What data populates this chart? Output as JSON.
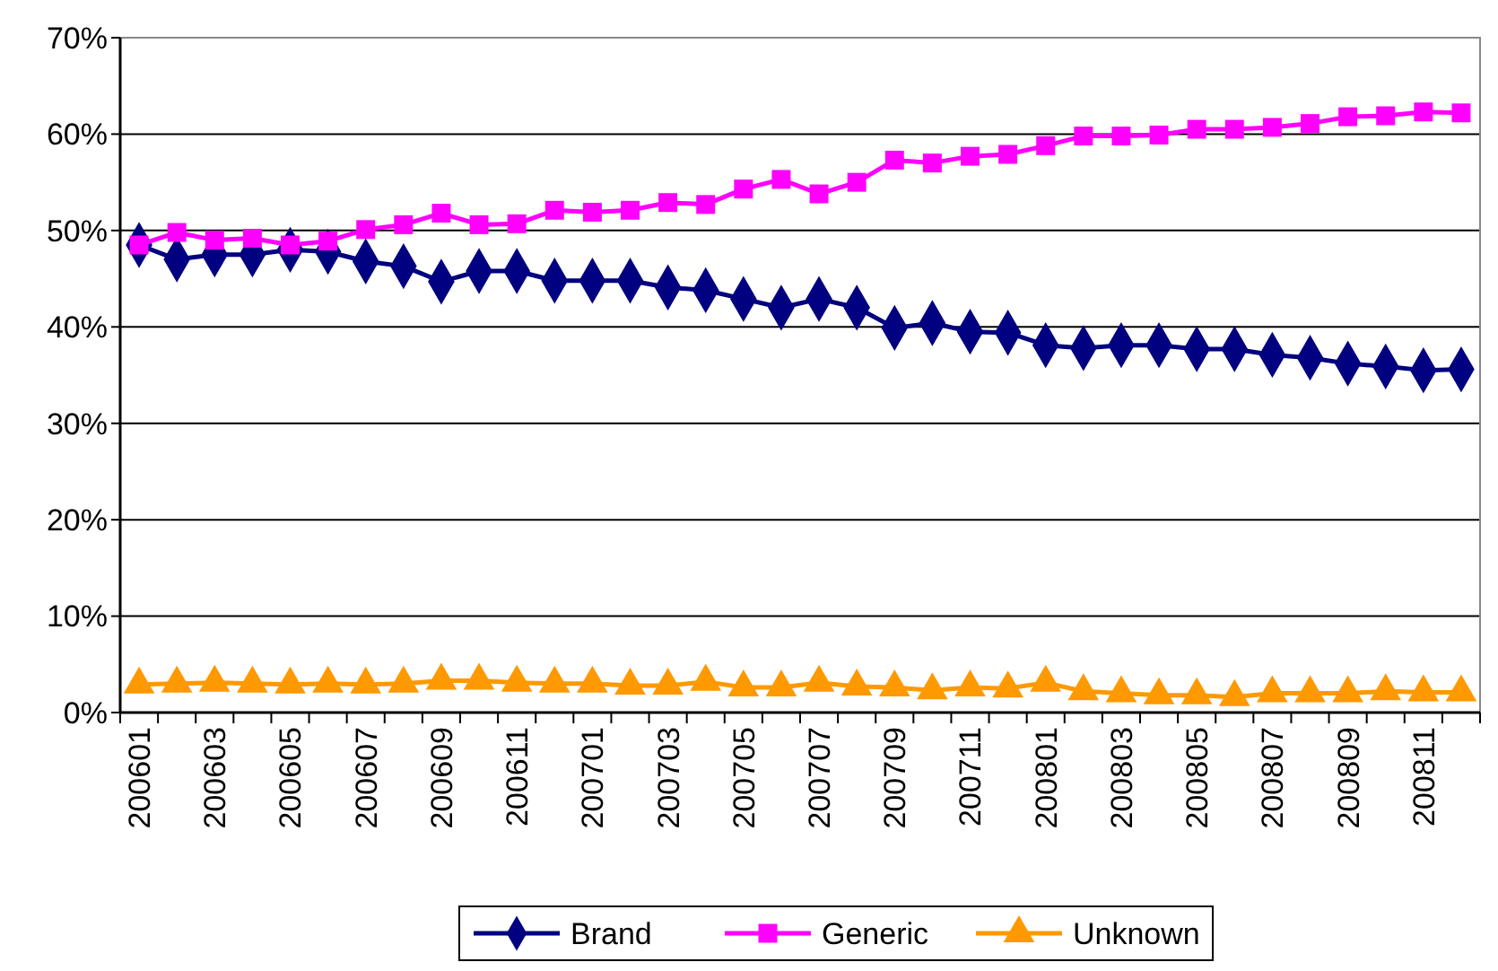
{
  "chart_data": {
    "type": "line",
    "categories": [
      "200601",
      null,
      "200603",
      null,
      "200605",
      null,
      "200607",
      null,
      "200609",
      null,
      "200611",
      null,
      "200701",
      null,
      "200703",
      null,
      "200705",
      null,
      "200707",
      null,
      "200709",
      null,
      "200711",
      null,
      "200801",
      null,
      "200803",
      null,
      "200805",
      null,
      "200807",
      null,
      "200809",
      null,
      "200811",
      null
    ],
    "series": [
      {
        "name": "Brand",
        "color": "#000080",
        "marker": "diamond",
        "values": [
          48.5,
          47,
          47.5,
          47.5,
          48,
          47.8,
          46.8,
          46.3,
          44.7,
          45.8,
          45.8,
          44.8,
          44.8,
          44.8,
          44.1,
          43.8,
          42.9,
          42,
          42.9,
          42,
          39.9,
          40.4,
          39.5,
          39.4,
          38.1,
          37.8,
          38.1,
          38.1,
          37.7,
          37.7,
          37.1,
          36.8,
          36.2,
          35.9,
          35.5,
          35.6
        ]
      },
      {
        "name": "Generic",
        "color": "#ff00ff",
        "marker": "square",
        "values": [
          48.5,
          49.8,
          49,
          49.2,
          48.5,
          48.9,
          50.1,
          50.6,
          51.8,
          50.6,
          50.7,
          52.1,
          51.9,
          52.1,
          52.9,
          52.7,
          54.3,
          55.3,
          53.8,
          55,
          57.3,
          57,
          57.7,
          57.9,
          58.8,
          59.8,
          59.8,
          59.9,
          60.5,
          60.5,
          60.7,
          61.1,
          61.8,
          61.9,
          62.3,
          62.2
        ]
      },
      {
        "name": "Unknown",
        "color": "#ff9900",
        "marker": "triangle",
        "values": [
          2.9,
          3,
          3.1,
          3,
          2.9,
          3,
          2.9,
          3,
          3.3,
          3.3,
          3.1,
          3,
          3,
          2.8,
          2.8,
          3.2,
          2.6,
          2.6,
          3.1,
          2.7,
          2.6,
          2.3,
          2.6,
          2.5,
          3.1,
          2.2,
          2,
          1.8,
          1.8,
          1.6,
          2,
          2,
          2,
          2.2,
          2.1,
          2.1
        ]
      }
    ],
    "ylim": [
      0,
      70
    ],
    "yticks": [
      {
        "value": 0,
        "label": "0%"
      },
      {
        "value": 10,
        "label": "10%"
      },
      {
        "value": 20,
        "label": "20%"
      },
      {
        "value": 30,
        "label": "30%"
      },
      {
        "value": 40,
        "label": "40%"
      },
      {
        "value": 50,
        "label": "50%"
      },
      {
        "value": 60,
        "label": "60%"
      },
      {
        "value": 70,
        "label": "70%"
      }
    ],
    "grid": "y",
    "legend": "bottom"
  }
}
